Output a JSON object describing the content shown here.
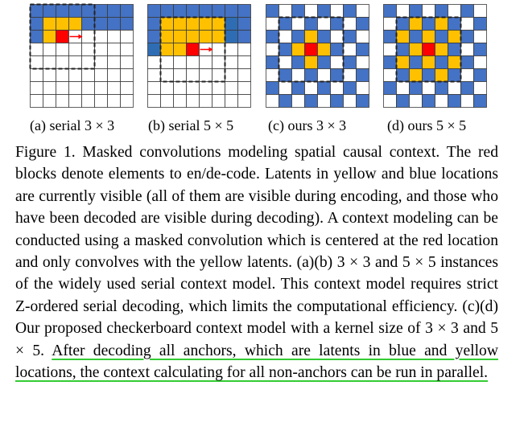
{
  "colors": {
    "blue": "#4472C4",
    "dark_blue": "#2E6DB4",
    "yellow": "#FFC000",
    "red": "#FF0000",
    "grid_line": "#3a3a3a",
    "underline_green": "#33cc33"
  },
  "panels": [
    {
      "label": "(a)  serial 3 × 3",
      "cells": [
        "BBBBBBBB",
        "BYYYBBBB",
        "BYRWWWWW",
        "WWWWWWWW",
        "WWWWWWWW",
        "WWWWWWWW",
        "WWWWWWWW",
        "WWWWWWWW"
      ],
      "arrow": true
    },
    {
      "label": "(b)  serial 5 × 5",
      "cells": [
        "BBBBBBBB",
        "BYYYYYDB",
        "BYYYYYDB",
        "DYYRWWWW",
        "WWWWWWWW",
        "WWWWWWWW",
        "WWWWWWWW",
        "WWWWWWWW"
      ],
      "arrow": true
    },
    {
      "label": "(c)  ours 3 × 3",
      "cells": [
        "BWBWBWBW",
        "WBWBWBWB",
        "BWBYBWBW",
        "WBYRYBWB",
        "BWBYBWBW",
        "WBWBWBWB",
        "BWBWBWBW",
        "WBWBWBWB"
      ],
      "arrow": false
    },
    {
      "label": "(d)  ours 5 × 5",
      "cells": [
        "BWBWBWBW",
        "WBYBYBWB",
        "BYBYBYBW",
        "WBYRYBWB",
        "BYBYBYBW",
        "WBYBYBWB",
        "BWBWBWBW",
        "WBWBWBWB"
      ],
      "arrow": false
    }
  ],
  "caption": {
    "label": "Figure 1.",
    "text": " Masked convolutions modeling spatial causal context. The red blocks denote elements to en/de-code. Latents in yellow and blue locations are currently visible (all of them are visible during encoding, and those who have been decoded are visible during decoding). A context modeling can be conducted using a masked convolution which is centered at the red location and only convolves with the yellow latents. (a)(b) 3 × 3 and 5 × 5 instances of the widely used serial context model. This context model requires strict Z-ordered serial decoding, which limits the computational efficiency. (c)(d) Our proposed checkerboard context model with a kernel size of 3 × 3 and 5 × 5. ",
    "highlight": "After decoding all anchors, which are latents in blue and yellow locations, the context calculating for all non-anchors can be run in parallel."
  }
}
